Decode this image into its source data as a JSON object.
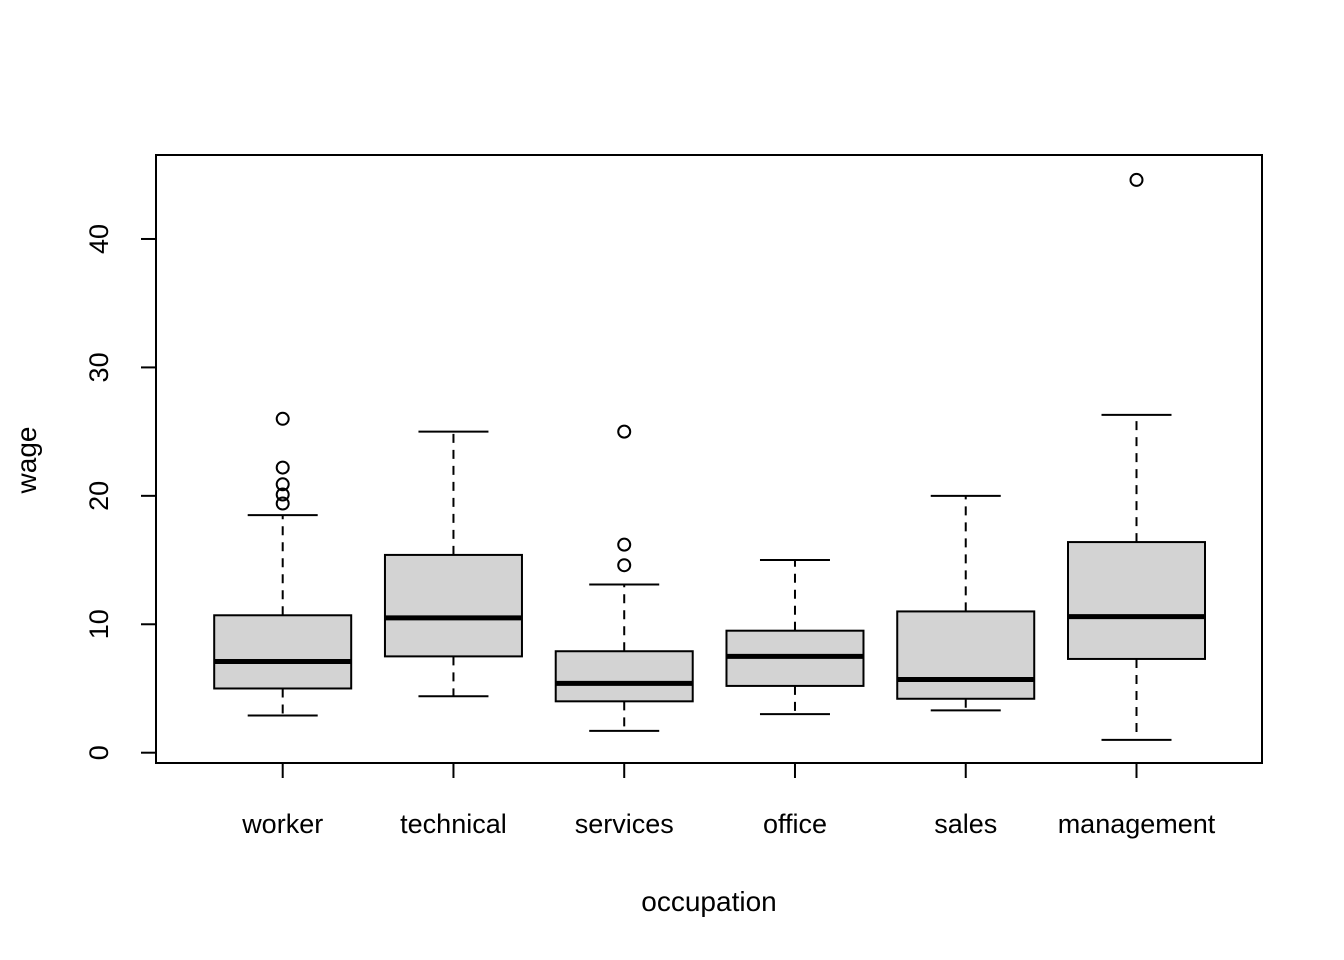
{
  "chart_data": {
    "type": "boxplot",
    "title": "",
    "xlabel": "occupation",
    "ylabel": "wage",
    "categories": [
      "worker",
      "technical",
      "services",
      "office",
      "sales",
      "management"
    ],
    "y_ticks": [
      0,
      10,
      20,
      30,
      40
    ],
    "ylim": [
      -0.8,
      46.5
    ],
    "grid": "off",
    "legend": "none",
    "box_fill_color": "#d3d3d3",
    "line_color": "#000000",
    "series": [
      {
        "category": "worker",
        "whisker_low": 2.9,
        "q1": 5.0,
        "median": 7.1,
        "q3": 10.7,
        "whisker_high": 18.5,
        "outliers": [
          19.4,
          20.1,
          20.9,
          22.2,
          26.0
        ]
      },
      {
        "category": "technical",
        "whisker_low": 4.4,
        "q1": 7.5,
        "median": 10.5,
        "q3": 15.4,
        "whisker_high": 25.0,
        "outliers": []
      },
      {
        "category": "services",
        "whisker_low": 1.7,
        "q1": 4.0,
        "median": 5.4,
        "q3": 7.9,
        "whisker_high": 13.1,
        "outliers": [
          14.6,
          16.2,
          25.0
        ]
      },
      {
        "category": "office",
        "whisker_low": 3.0,
        "q1": 5.2,
        "median": 7.5,
        "q3": 9.5,
        "whisker_high": 15.0,
        "outliers": []
      },
      {
        "category": "sales",
        "whisker_low": 3.3,
        "q1": 4.2,
        "median": 5.7,
        "q3": 11.0,
        "whisker_high": 20.0,
        "outliers": []
      },
      {
        "category": "management",
        "whisker_low": 1.0,
        "q1": 7.3,
        "median": 10.6,
        "q3": 16.4,
        "whisker_high": 26.3,
        "outliers": [
          44.6
        ]
      }
    ]
  }
}
